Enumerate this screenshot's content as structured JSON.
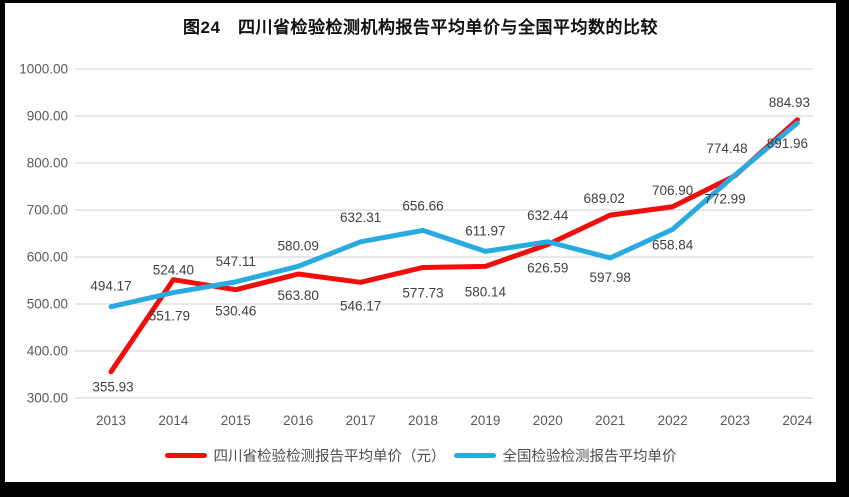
{
  "chart_data": {
    "type": "line",
    "title": "图24　四川省检验检测机构报告平均单价与全国平均数的比较",
    "categories": [
      "2013",
      "2014",
      "2015",
      "2016",
      "2017",
      "2018",
      "2019",
      "2020",
      "2021",
      "2022",
      "2023",
      "2024"
    ],
    "series": [
      {
        "name": "四川省检验检测报告平均单价（元）",
        "color": "#f20d0d",
        "values": [
          355.93,
          551.79,
          530.46,
          563.8,
          546.17,
          577.73,
          580.14,
          626.59,
          689.02,
          706.9,
          772.99,
          891.96
        ],
        "label_positions": [
          "below",
          "below",
          "below",
          "below",
          "below",
          "below",
          "below",
          "below",
          "above",
          "above",
          "below",
          "below"
        ],
        "label_dx": [
          2,
          -4,
          0,
          0,
          0,
          0,
          0,
          0,
          -6,
          0,
          -10,
          -10
        ],
        "label_dy": [
          -6,
          15,
          0,
          0,
          2,
          4,
          4,
          2,
          4,
          4,
          2,
          2
        ]
      },
      {
        "name": "全国检验检测报告平均单价",
        "color": "#29abe2",
        "values": [
          494.17,
          524.4,
          547.11,
          580.09,
          632.31,
          656.66,
          611.97,
          632.44,
          597.98,
          658.84,
          774.48,
          884.93
        ],
        "label_positions": [
          "above",
          "above",
          "above",
          "above",
          "above",
          "above",
          "above",
          "above",
          "below",
          "below",
          "above",
          "above"
        ],
        "label_dx": [
          0,
          0,
          0,
          0,
          0,
          0,
          0,
          0,
          0,
          0,
          -8,
          -8
        ],
        "label_dy": [
          0,
          -2,
          0,
          0,
          -4,
          -4,
          0,
          -6,
          -2,
          -6,
          -6,
          0
        ]
      }
    ],
    "ylim": [
      300,
      1000
    ],
    "ytick_step": 100,
    "ytick_decimals": 2,
    "grid": "horizontal",
    "legend_position": "bottom",
    "colors": {
      "gridline": "#d9d9d9",
      "axis_text": "#595959",
      "data_label": "#404040",
      "background": "#ffffff",
      "frame": "#000000"
    }
  }
}
